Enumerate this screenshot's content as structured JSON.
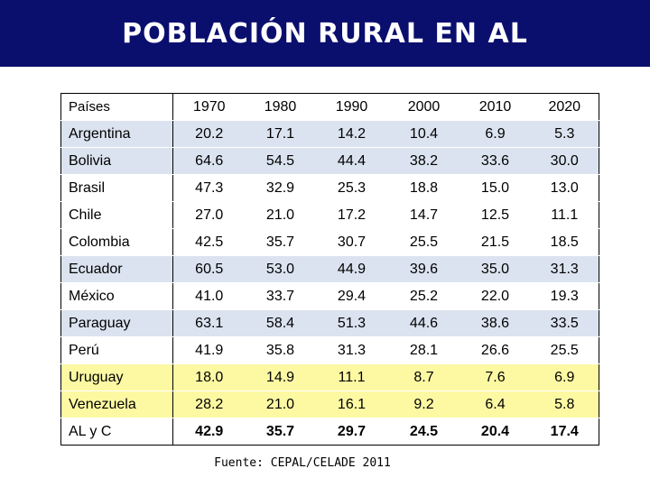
{
  "title": "POBLACIÓN RURAL EN AL",
  "table": {
    "header": [
      "Países",
      "1970",
      "1980",
      "1990",
      "2000",
      "2010",
      "2020"
    ],
    "rows": [
      {
        "style": "blue",
        "cells": [
          "Argentina",
          "20.2",
          "17.1",
          "14.2",
          "10.4",
          "6.9",
          "5.3"
        ]
      },
      {
        "style": "blue",
        "cells": [
          "Bolivia",
          "64.6",
          "54.5",
          "44.4",
          "38.2",
          "33.6",
          "30.0"
        ]
      },
      {
        "style": "white",
        "cells": [
          "Brasil",
          "47.3",
          "32.9",
          "25.3",
          "18.8",
          "15.0",
          "13.0"
        ]
      },
      {
        "style": "white",
        "cells": [
          "Chile",
          "27.0",
          "21.0",
          "17.2",
          "14.7",
          "12.5",
          "11.1"
        ]
      },
      {
        "style": "white",
        "cells": [
          "Colombia",
          "42.5",
          "35.7",
          "30.7",
          "25.5",
          "21.5",
          "18.5"
        ]
      },
      {
        "style": "blue",
        "cells": [
          "Ecuador",
          "60.5",
          "53.0",
          "44.9",
          "39.6",
          "35.0",
          "31.3"
        ]
      },
      {
        "style": "white",
        "cells": [
          "México",
          "41.0",
          "33.7",
          "29.4",
          "25.2",
          "22.0",
          "19.3"
        ]
      },
      {
        "style": "blue",
        "cells": [
          "Paraguay",
          "63.1",
          "58.4",
          "51.3",
          "44.6",
          "38.6",
          "33.5"
        ]
      },
      {
        "style": "white",
        "cells": [
          "Perú",
          "41.9",
          "35.8",
          "31.3",
          "28.1",
          "26.6",
          "25.5"
        ]
      },
      {
        "style": "yellow",
        "cells": [
          "Uruguay",
          "18.0",
          "14.9",
          "11.1",
          "8.7",
          "7.6",
          "6.9"
        ]
      },
      {
        "style": "yellow",
        "cells": [
          "Venezuela",
          "28.2",
          "21.0",
          "16.1",
          "9.2",
          "6.4",
          "5.8"
        ]
      },
      {
        "style": "total",
        "cells": [
          "AL y C",
          "42.9",
          "35.7",
          "29.7",
          "24.5",
          "20.4",
          "17.4"
        ]
      }
    ]
  },
  "source": "Fuente: CEPAL/CELADE 2011",
  "colors": {
    "banner": "#0a0f6e",
    "blue_row": "#dbe3f0",
    "yellow_row": "#fdf9a3"
  }
}
